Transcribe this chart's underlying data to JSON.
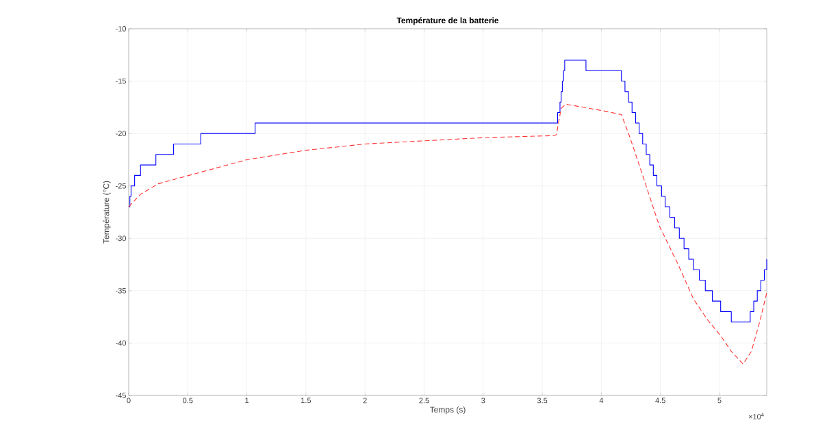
{
  "chart_data": {
    "type": "line",
    "title": "Température de la batterie",
    "xlabel": "Temps (s)",
    "ylabel": "Température (°C)",
    "xlim": [
      0,
      5.4
    ],
    "ylim": [
      -45,
      -10
    ],
    "xticks": [
      0,
      0.5,
      1,
      1.5,
      2,
      2.5,
      3,
      3.5,
      4,
      4.5,
      5
    ],
    "yticks": [
      -45,
      -40,
      -35,
      -30,
      -25,
      -20,
      -15,
      -10
    ],
    "grid": true,
    "annotations": [
      "×10$^{4}$"
    ],
    "series": [
      {
        "type": "step",
        "color": "#0000ff",
        "line_style": "solid",
        "marker": "none",
        "x": [
          0,
          0.01,
          0.02,
          0.05,
          0.1,
          0.23,
          0.38,
          0.61,
          1.07,
          3.63,
          3.65,
          3.66,
          3.67,
          3.68,
          3.69,
          3.87,
          4.17,
          4.2,
          4.23,
          4.26,
          4.29,
          4.32,
          4.35,
          4.38,
          4.41,
          4.44,
          4.47,
          4.51,
          4.54,
          4.58,
          4.62,
          4.66,
          4.7,
          4.74,
          4.78,
          4.83,
          4.88,
          4.94,
          5.01,
          5.1,
          5.26,
          5.29,
          5.32,
          5.35,
          5.38,
          5.4
        ],
        "values": [
          -27,
          -26,
          -25,
          -24,
          -23,
          -22,
          -21,
          -20,
          -19,
          -18,
          -17,
          -16,
          -15,
          -14,
          -13,
          -14,
          -15,
          -16,
          -17,
          -18,
          -19,
          -20,
          -21,
          -22,
          -23,
          -24,
          -25,
          -26,
          -27,
          -28,
          -29,
          -30,
          -31,
          -32,
          -33,
          -34,
          -35,
          -36,
          -37,
          -38,
          -37,
          -36,
          -35,
          -34,
          -33,
          -32
        ]
      },
      {
        "color": "#ff3333",
        "line_style": "dashed",
        "marker": "none",
        "x": [
          0,
          0.1,
          0.25,
          0.51,
          1,
          1.5,
          2,
          2.5,
          3,
          3.6,
          3.62,
          3.66,
          3.7,
          4,
          4.17,
          4.24,
          4.35,
          4.49,
          4.65,
          4.78,
          4.9,
          5.01,
          5.1,
          5.2,
          5.27,
          5.34,
          5.4
        ],
        "values": [
          -27,
          -25.8,
          -24.8,
          -24,
          -22.5,
          -21.6,
          -21,
          -20.7,
          -20.4,
          -20.2,
          -20.1,
          -17.6,
          -17.2,
          -17.8,
          -18.2,
          -20.3,
          -24,
          -28.8,
          -32.5,
          -35.8,
          -37.8,
          -39.3,
          -40.8,
          -42,
          -40.8,
          -38,
          -35.2
        ]
      }
    ]
  }
}
